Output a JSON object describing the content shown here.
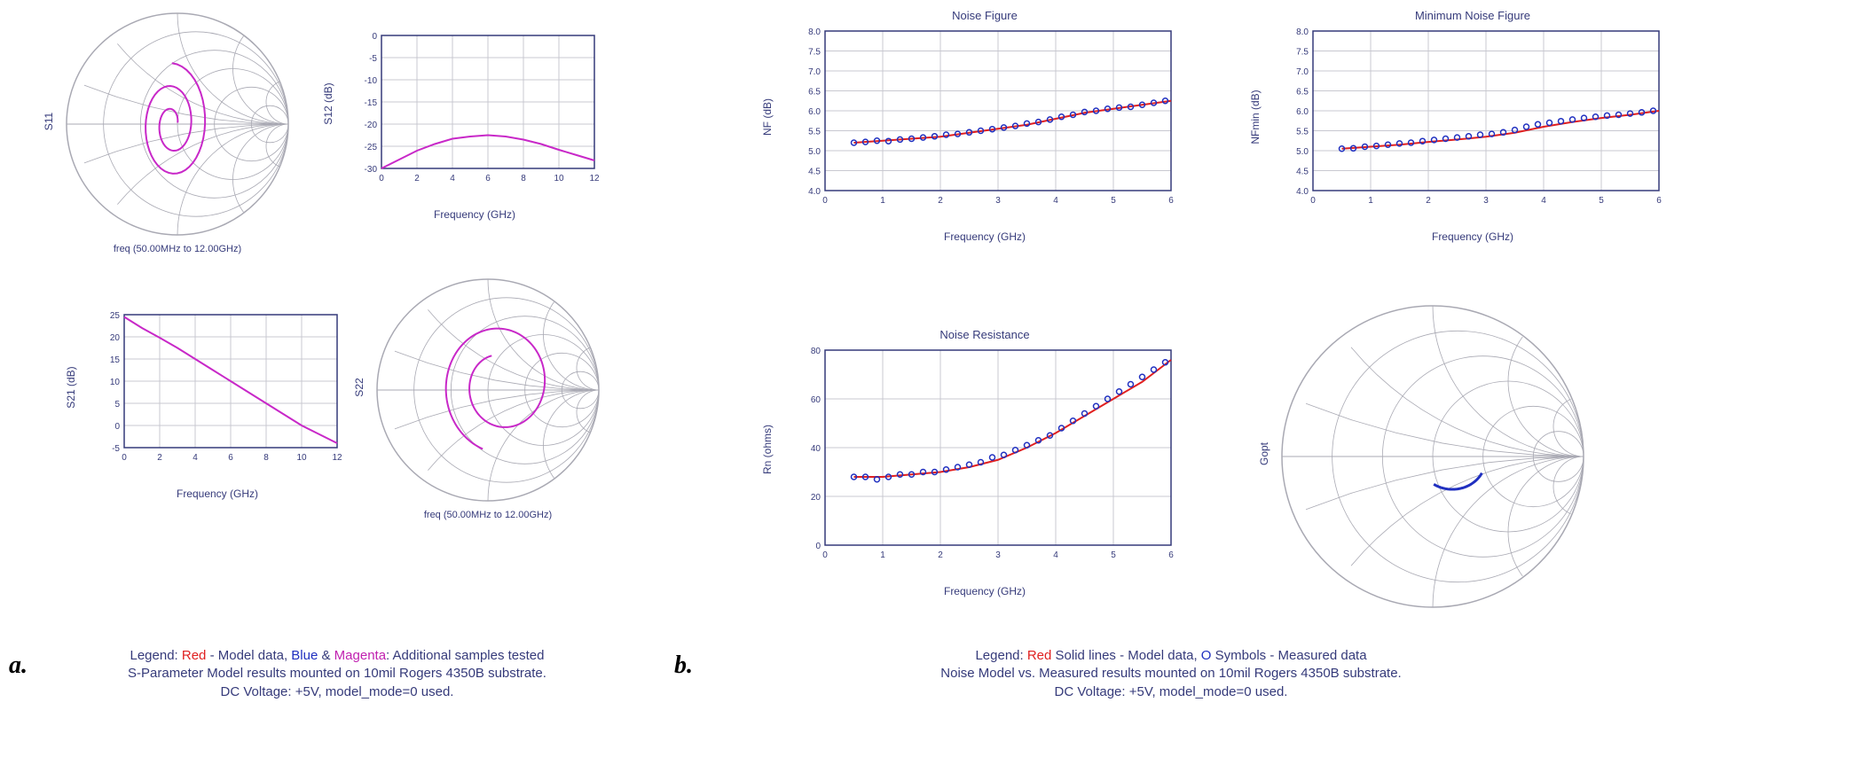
{
  "panelA": {
    "s11_smith": {
      "type": "smith",
      "ylabel": "S11",
      "subcaption": "freq (50.00MHz to 12.00GHz)",
      "grid_color": "#a9a9b3",
      "trace_color": "#c828c8",
      "line_width": 2
    },
    "s12_chart": {
      "type": "line",
      "ylabel": "S12 (dB)",
      "xlabel": "Frequency (GHz)",
      "xlim": [
        0,
        12
      ],
      "xtick_step": 2,
      "ylim": [
        -30,
        0
      ],
      "ytick_step": 5,
      "grid_color": "#c8c8d0",
      "border_color": "#353a7a",
      "x": [
        0,
        1,
        2,
        3,
        4,
        5,
        6,
        7,
        8,
        9,
        10,
        11,
        12
      ],
      "y": [
        -30,
        -28,
        -26,
        -24.5,
        -23.3,
        -22.8,
        -22.5,
        -22.8,
        -23.5,
        -24.5,
        -25.8,
        -27,
        -28.2
      ],
      "line_color": "#c828c8",
      "line_width": 2
    },
    "s21_chart": {
      "type": "line",
      "ylabel": "S21 (dB)",
      "xlabel": "Frequency (GHz)",
      "xlim": [
        0,
        12
      ],
      "xtick_step": 2,
      "ylim": [
        -5,
        25
      ],
      "ytick_step": 5,
      "grid_color": "#c8c8d0",
      "border_color": "#353a7a",
      "x": [
        0,
        1,
        2,
        3,
        4,
        5,
        6,
        7,
        8,
        9,
        10,
        11,
        12
      ],
      "y": [
        24.5,
        22,
        19.8,
        17.5,
        15,
        12.5,
        10,
        7.5,
        5,
        2.5,
        0,
        -2,
        -4
      ],
      "line_color": "#c828c8",
      "line_width": 2
    },
    "s22_smith": {
      "type": "smith",
      "ylabel": "S22",
      "subcaption": "freq (50.00MHz to 12.00GHz)",
      "grid_color": "#a9a9b3",
      "trace_color": "#c828c8",
      "line_width": 2
    },
    "caption_l1_prefix": "Legend: ",
    "caption_l1_red": "Red",
    "caption_l1_mid1": " - Model data, ",
    "caption_l1_blue": "Blue",
    "caption_l1_amp": " & ",
    "caption_l1_mag": "Magenta",
    "caption_l1_suffix": ": Additional samples tested",
    "caption_l2": "S-Parameter Model results mounted on 10mil Rogers 4350B substrate.",
    "caption_l3": "DC Voltage: +5V, model_mode=0 used."
  },
  "panelB": {
    "nf_chart": {
      "type": "scatter-line",
      "title": "Noise Figure",
      "ylabel": "NF (dB)",
      "xlabel": "Frequency (GHz)",
      "xlim": [
        0,
        6
      ],
      "xtick_step": 1,
      "ylim": [
        4.0,
        8.0
      ],
      "ytick_step": 0.5,
      "grid_color": "#c8c8d0",
      "border_color": "#353a7a",
      "line_x": [
        0.5,
        1,
        1.5,
        2,
        2.5,
        3,
        3.5,
        4,
        4.5,
        5,
        5.5,
        6
      ],
      "line_y": [
        5.2,
        5.25,
        5.3,
        5.35,
        5.45,
        5.55,
        5.65,
        5.8,
        5.95,
        6.05,
        6.15,
        6.25
      ],
      "line_color": "#e02020",
      "marker_x": [
        0.5,
        0.7,
        0.9,
        1.1,
        1.3,
        1.5,
        1.7,
        1.9,
        2.1,
        2.3,
        2.5,
        2.7,
        2.9,
        3.1,
        3.3,
        3.5,
        3.7,
        3.9,
        4.1,
        4.3,
        4.5,
        4.7,
        4.9,
        5.1,
        5.3,
        5.5,
        5.7,
        5.9
      ],
      "marker_y": [
        5.2,
        5.22,
        5.25,
        5.24,
        5.28,
        5.3,
        5.33,
        5.36,
        5.4,
        5.42,
        5.46,
        5.5,
        5.54,
        5.58,
        5.62,
        5.68,
        5.72,
        5.78,
        5.85,
        5.9,
        5.97,
        6.0,
        6.05,
        6.08,
        6.1,
        6.15,
        6.2,
        6.25
      ],
      "marker_color": "#2030c0",
      "marker_size": 3
    },
    "nfmin_chart": {
      "type": "scatter-line",
      "title": "Minimum Noise Figure",
      "ylabel": "NFmin (dB)",
      "xlabel": "Frequency (GHz)",
      "xlim": [
        0,
        6
      ],
      "xtick_step": 1,
      "ylim": [
        4.0,
        8.0
      ],
      "ytick_step": 0.5,
      "grid_color": "#c8c8d0",
      "border_color": "#353a7a",
      "line_x": [
        0.5,
        1,
        1.5,
        2,
        2.5,
        3,
        3.5,
        4,
        4.5,
        5,
        5.5,
        6
      ],
      "line_y": [
        5.05,
        5.1,
        5.15,
        5.22,
        5.28,
        5.35,
        5.45,
        5.6,
        5.72,
        5.82,
        5.9,
        6.0
      ],
      "line_color": "#e02020",
      "marker_x": [
        0.5,
        0.7,
        0.9,
        1.1,
        1.3,
        1.5,
        1.7,
        1.9,
        2.1,
        2.3,
        2.5,
        2.7,
        2.9,
        3.1,
        3.3,
        3.5,
        3.7,
        3.9,
        4.1,
        4.3,
        4.5,
        4.7,
        4.9,
        5.1,
        5.3,
        5.5,
        5.7,
        5.9
      ],
      "marker_y": [
        5.05,
        5.06,
        5.1,
        5.12,
        5.15,
        5.18,
        5.2,
        5.24,
        5.27,
        5.3,
        5.33,
        5.36,
        5.4,
        5.42,
        5.46,
        5.52,
        5.6,
        5.66,
        5.7,
        5.74,
        5.78,
        5.82,
        5.85,
        5.88,
        5.9,
        5.93,
        5.96,
        6.0
      ],
      "marker_color": "#2030c0",
      "marker_size": 3
    },
    "rn_chart": {
      "type": "scatter-line",
      "title": "Noise Resistance",
      "ylabel": "Rn (ohms)",
      "xlabel": "Frequency (GHz)",
      "xlim": [
        0,
        6
      ],
      "xtick_step": 1,
      "ylim": [
        0,
        80
      ],
      "ytick_step": 20,
      "grid_color": "#c8c8d0",
      "border_color": "#353a7a",
      "line_x": [
        0.5,
        1,
        1.5,
        2,
        2.5,
        3,
        3.5,
        4,
        4.5,
        5,
        5.5,
        6
      ],
      "line_y": [
        28,
        28,
        29,
        30,
        32,
        35,
        40,
        46,
        53,
        60,
        67,
        76
      ],
      "line_color": "#e02020",
      "marker_x": [
        0.5,
        0.7,
        0.9,
        1.1,
        1.3,
        1.5,
        1.7,
        1.9,
        2.1,
        2.3,
        2.5,
        2.7,
        2.9,
        3.1,
        3.3,
        3.5,
        3.7,
        3.9,
        4.1,
        4.3,
        4.5,
        4.7,
        4.9,
        5.1,
        5.3,
        5.5,
        5.7,
        5.9
      ],
      "marker_y": [
        28,
        28,
        27,
        28,
        29,
        29,
        30,
        30,
        31,
        32,
        33,
        34,
        36,
        37,
        39,
        41,
        43,
        45,
        48,
        51,
        54,
        57,
        60,
        63,
        66,
        69,
        72,
        75
      ],
      "marker_color": "#2030c0",
      "marker_size": 3
    },
    "gopt_smith": {
      "type": "smith",
      "ylabel": "Gopt",
      "grid_color": "#a9a9b3",
      "trace_color": "#2030c0",
      "line_width": 3
    },
    "caption_l1_prefix": "Legend: ",
    "caption_l1_red": "Red",
    "caption_l1_mid1": " Solid lines - Model data, ",
    "caption_l1_blueO": "O",
    "caption_l1_suffix": " Symbols - Measured data",
    "caption_l2": "Noise Model vs. Measured results mounted on 10mil Rogers 4350B substrate.",
    "caption_l3": "DC Voltage: +5V, model_mode=0 used."
  }
}
